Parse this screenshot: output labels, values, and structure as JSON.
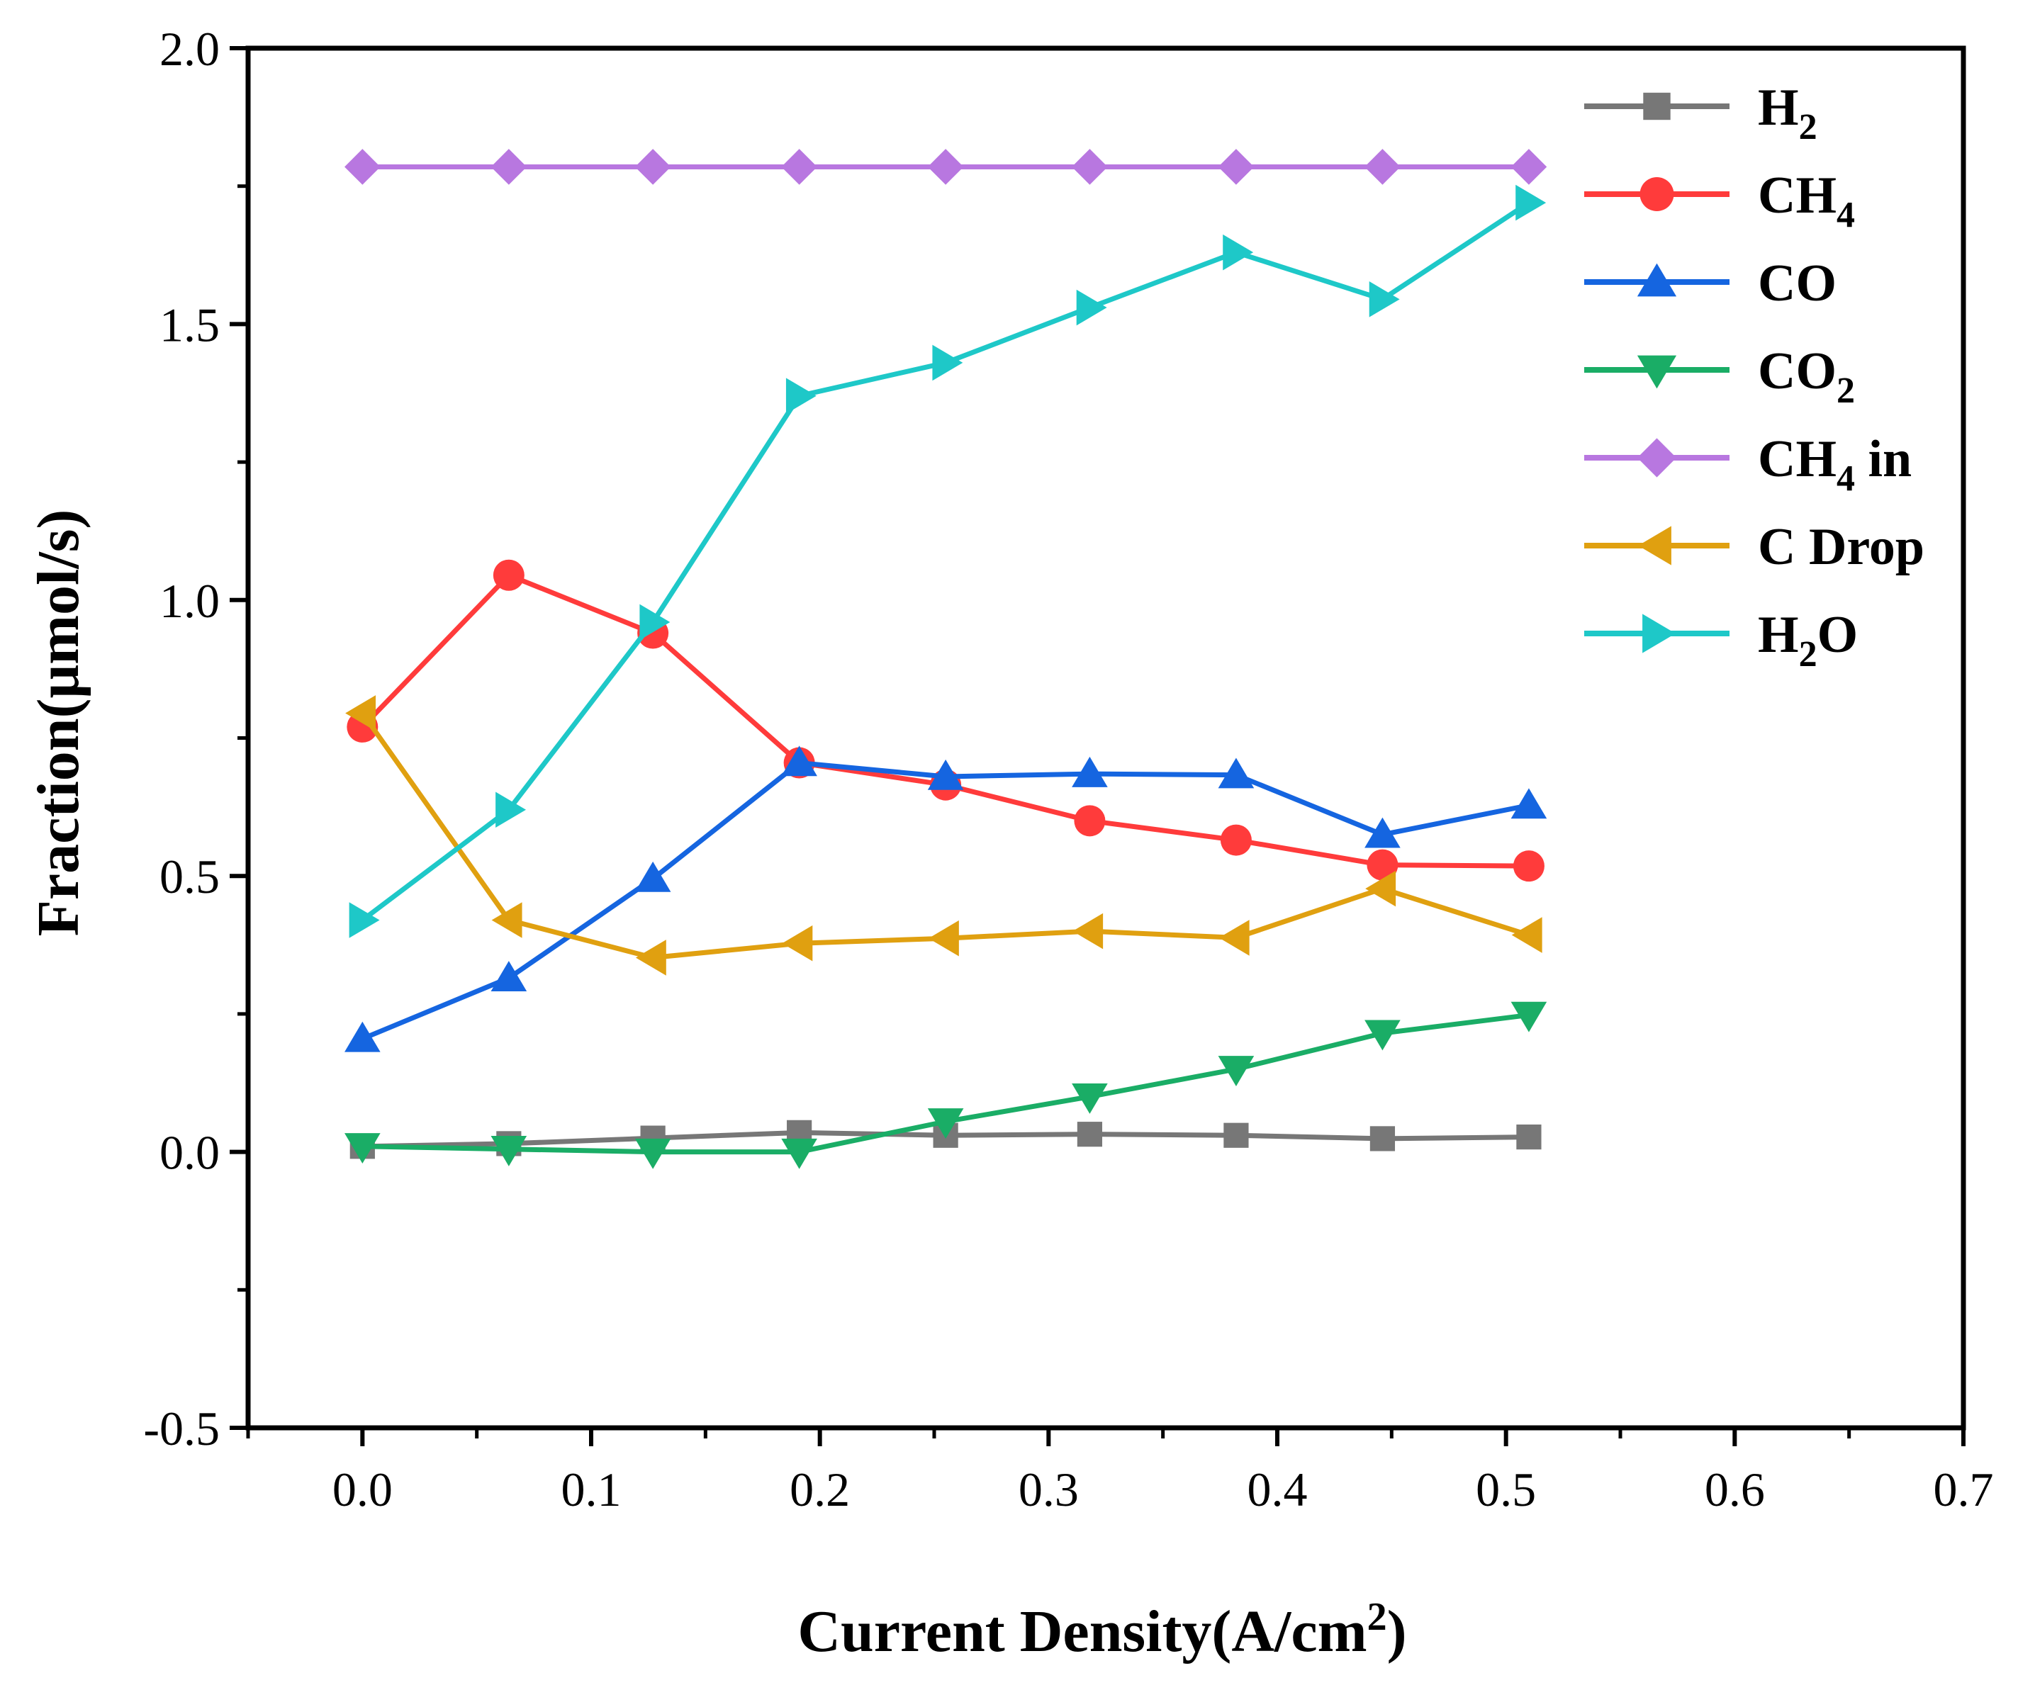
{
  "chart_data": {
    "type": "line",
    "title": "",
    "xlabel": "Current Density(A/cm",
    "xlabel_superscript": "2",
    "xlabel_suffix": ")",
    "ylabel": "Fraction(μmol/s)",
    "xlim": [
      -0.05,
      0.7
    ],
    "ylim": [
      -0.5,
      2.0
    ],
    "x_ticks": [
      0.0,
      0.1,
      0.2,
      0.3,
      0.4,
      0.5,
      0.6,
      0.7
    ],
    "x_tick_labels": [
      "0.0",
      "0.1",
      "0.2",
      "0.3",
      "0.4",
      "0.5",
      "0.6",
      "0.7"
    ],
    "y_ticks": [
      -0.5,
      0.0,
      0.5,
      1.0,
      1.5,
      2.0
    ],
    "y_tick_labels": [
      "-0.5",
      "0.0",
      "0.5",
      "1.0",
      "1.5",
      "2.0"
    ],
    "legend_position": "top-right",
    "x": [
      0.0,
      0.064,
      0.127,
      0.191,
      0.255,
      0.318,
      0.382,
      0.446,
      0.51
    ],
    "series": [
      {
        "name": "H",
        "sub": "2",
        "suffix": "",
        "color": "#777777",
        "marker": "square",
        "values": [
          0.01,
          0.015,
          0.025,
          0.035,
          0.03,
          0.032,
          0.03,
          0.024,
          0.027
        ]
      },
      {
        "name": "CH",
        "sub": "4",
        "suffix": "",
        "color": "#ff3b3b",
        "marker": "circle",
        "values": [
          0.77,
          1.045,
          0.94,
          0.705,
          0.665,
          0.6,
          0.565,
          0.52,
          0.518
        ]
      },
      {
        "name": "CO",
        "sub": "",
        "suffix": "",
        "color": "#1565e0",
        "marker": "triangle-up",
        "values": [
          0.205,
          0.315,
          0.495,
          0.705,
          0.68,
          0.685,
          0.683,
          0.575,
          0.628
        ]
      },
      {
        "name": "CO",
        "sub": "2",
        "suffix": "",
        "color": "#1aad66",
        "marker": "triangle-down",
        "values": [
          0.01,
          0.005,
          0.0,
          0.0,
          0.055,
          0.1,
          0.15,
          0.215,
          0.248
        ]
      },
      {
        "name": "CH",
        "sub": "4",
        "suffix": " in",
        "color": "#b877e0",
        "marker": "diamond",
        "values": [
          1.785,
          1.785,
          1.785,
          1.785,
          1.785,
          1.785,
          1.785,
          1.785,
          1.785
        ]
      },
      {
        "name": "C Drop",
        "sub": "",
        "suffix": "",
        "color": "#e0a010",
        "marker": "triangle-left",
        "values": [
          0.795,
          0.42,
          0.352,
          0.378,
          0.387,
          0.4,
          0.388,
          0.477,
          0.393
        ]
      },
      {
        "name": "H",
        "sub": "2",
        "suffix": "O",
        "color": "#1ec8c8",
        "marker": "triangle-right",
        "values": [
          0.42,
          0.62,
          0.96,
          1.37,
          1.43,
          1.53,
          1.63,
          1.545,
          1.72
        ]
      }
    ]
  }
}
